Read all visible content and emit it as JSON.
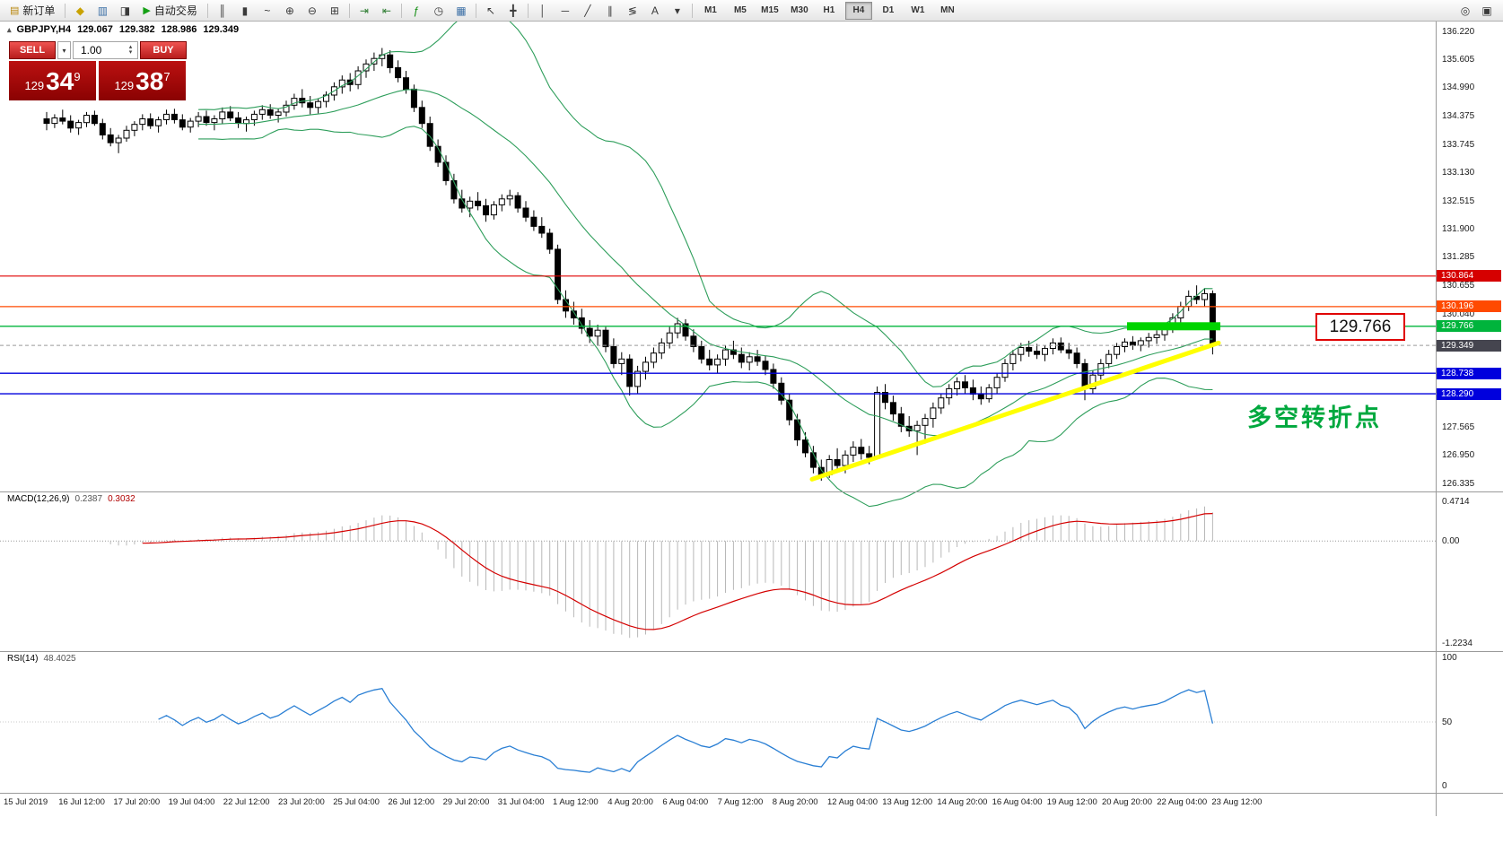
{
  "toolbar": {
    "items": [
      {
        "type": "button",
        "name": "new-order-button",
        "icon": "new-order-icon",
        "glyph": "▤",
        "color": "#b8860b",
        "label": "新订单"
      },
      {
        "type": "sep"
      },
      {
        "type": "icon",
        "name": "profiles-icon",
        "glyph": "◆",
        "color": "#c9a200"
      },
      {
        "type": "icon",
        "name": "charts-icon",
        "glyph": "▥",
        "color": "#3a6ea5"
      },
      {
        "type": "icon",
        "name": "terminal-icon",
        "glyph": "◨",
        "color": "#3a3a3a"
      },
      {
        "type": "button",
        "name": "autotrade-button",
        "icon": "autotrade-play-icon",
        "glyph": "▶",
        "color": "#15a015",
        "label": "自动交易"
      },
      {
        "type": "sep"
      },
      {
        "type": "icon",
        "name": "bar-chart-icon",
        "glyph": "║",
        "color": "#3a3a3a"
      },
      {
        "type": "icon",
        "name": "candlestick-chart-icon",
        "glyph": "▮",
        "color": "#3a3a3a"
      },
      {
        "type": "icon",
        "name": "line-chart-icon",
        "glyph": "~",
        "color": "#3a3a3a"
      },
      {
        "type": "icon",
        "name": "zoom-in-icon",
        "glyph": "⊕",
        "color": "#3a3a3a"
      },
      {
        "type": "icon",
        "name": "zoom-out-icon",
        "glyph": "⊖",
        "color": "#3a3a3a"
      },
      {
        "type": "icon",
        "name": "tile-windows-icon",
        "glyph": "⊞",
        "color": "#3a3a3a"
      },
      {
        "type": "sep"
      },
      {
        "type": "icon",
        "name": "auto-scroll-icon",
        "glyph": "⇥",
        "color": "#2e7d32"
      },
      {
        "type": "icon",
        "name": "chart-shift-icon",
        "glyph": "⇤",
        "color": "#2e7d32"
      },
      {
        "type": "sep"
      },
      {
        "type": "icon",
        "name": "indicators-icon",
        "glyph": "ƒ",
        "color": "#0a8a0a"
      },
      {
        "type": "icon",
        "name": "periods-icon",
        "glyph": "◷",
        "color": "#3a3a3a"
      },
      {
        "type": "icon",
        "name": "templates-icon",
        "glyph": "▦",
        "color": "#3a6ea5"
      },
      {
        "type": "sep"
      },
      {
        "type": "icon",
        "name": "cursor-icon",
        "glyph": "↖",
        "color": "#3a3a3a"
      },
      {
        "type": "icon",
        "name": "crosshair-icon",
        "glyph": "╋",
        "color": "#3a3a3a"
      },
      {
        "type": "sep"
      },
      {
        "type": "icon",
        "name": "vertical-line-icon",
        "glyph": "│",
        "color": "#3a3a3a"
      },
      {
        "type": "icon",
        "name": "horizontal-line-icon",
        "glyph": "─",
        "color": "#3a3a3a"
      },
      {
        "type": "icon",
        "name": "trendline-icon",
        "glyph": "╱",
        "color": "#3a3a3a"
      },
      {
        "type": "icon",
        "name": "channel-icon",
        "glyph": "∥",
        "color": "#3a3a3a"
      },
      {
        "type": "icon",
        "name": "fibonacci-icon",
        "glyph": "≶",
        "color": "#3a3a3a"
      },
      {
        "type": "icon",
        "name": "text-label-icon",
        "glyph": "A",
        "color": "#3a3a3a"
      },
      {
        "type": "icon",
        "name": "arrows-icon",
        "glyph": "▾",
        "color": "#3a3a3a"
      },
      {
        "type": "sep"
      },
      {
        "type": "tf",
        "label": "M1"
      },
      {
        "type": "tf",
        "label": "M5"
      },
      {
        "type": "tf",
        "label": "M15"
      },
      {
        "type": "tf",
        "label": "M30"
      },
      {
        "type": "tf",
        "label": "H1"
      },
      {
        "type": "tf",
        "label": "H4",
        "active": true
      },
      {
        "type": "tf",
        "label": "D1"
      },
      {
        "type": "tf",
        "label": "W1"
      },
      {
        "type": "tf",
        "label": "MN"
      }
    ],
    "right_icons": [
      {
        "name": "search-icon",
        "glyph": "◎",
        "color": "#3a3a3a"
      },
      {
        "name": "window-list-icon",
        "glyph": "▣",
        "color": "#3a3a3a"
      }
    ]
  },
  "chart_info": {
    "symbol_period": "GBPJPY,H4",
    "open": "129.067",
    "high": "129.382",
    "low": "128.986",
    "close": "129.349"
  },
  "trade_panel": {
    "sell_label": "SELL",
    "buy_label": "BUY",
    "volume": "1.00",
    "sell_price": {
      "big": "129",
      "pips": "34",
      "frac": "9"
    },
    "buy_price": {
      "big": "129",
      "pips": "38",
      "frac": "7"
    }
  },
  "annotations": {
    "turning_point": "多空转折点",
    "price_label": "129.766"
  },
  "price_axis": {
    "ticks": [
      "136.220",
      "135.605",
      "134.990",
      "134.375",
      "133.745",
      "133.130",
      "132.515",
      "131.900",
      "131.285",
      "130.655",
      "130.040",
      "127.565",
      "126.950",
      "126.335"
    ],
    "badges": [
      {
        "text": "130.864",
        "price": 130.864,
        "color": "#d60000"
      },
      {
        "text": "130.196",
        "price": 130.196,
        "color": "#ff4a00"
      },
      {
        "text": "129.766",
        "price": 129.766,
        "color": "#00b43c"
      },
      {
        "text": "129.349",
        "price": 129.349,
        "color": "#45454f"
      },
      {
        "text": "128.738",
        "price": 128.738,
        "color": "#0000dd"
      },
      {
        "text": "128.290",
        "price": 128.29,
        "color": "#0000dd"
      }
    ]
  },
  "macd_panel": {
    "label": "MACD(12,26,9)",
    "value_main": "0.2387",
    "value_signal": "0.3032",
    "scale": [
      "0.4714",
      "0.00",
      "-1.2234"
    ]
  },
  "rsi_panel": {
    "label": "RSI(14)",
    "value": "48.4025",
    "scale": [
      "100",
      "50",
      "0"
    ]
  },
  "time_axis": {
    "labels": [
      "15 Jul 2019",
      "16 Jul 12:00",
      "17 Jul 20:00",
      "19 Jul 04:00",
      "22 Jul 12:00",
      "23 Jul 20:00",
      "25 Jul 04:00",
      "26 Jul 12:00",
      "29 Jul 20:00",
      "31 Jul 04:00",
      "1 Aug 12:00",
      "4 Aug 20:00",
      "6 Aug 04:00",
      "7 Aug 12:00",
      "8 Aug 20:00",
      "12 Aug 04:00",
      "13 Aug 12:00",
      "14 Aug 20:00",
      "16 Aug 04:00",
      "19 Aug 12:00",
      "20 Aug 20:00",
      "22 Aug 04:00",
      "23 Aug 12:00"
    ]
  },
  "chart_data": {
    "type": "candlestick",
    "symbol": "GBPJPY",
    "period": "H4",
    "indicators": {
      "bollinger": {
        "period": 20,
        "deviation": 2,
        "color": "#2e9e5b"
      },
      "macd": {
        "fast": 12,
        "slow": 26,
        "signal": 9,
        "hist_color": "#b8b8b8",
        "signal_color": "#d40000"
      },
      "rsi": {
        "period": 14,
        "color": "#2a7fd4"
      }
    },
    "hlines": [
      {
        "price": 130.864,
        "color": "#e00000",
        "width": 1.2
      },
      {
        "price": 130.196,
        "color": "#ff4a00",
        "width": 1.2
      },
      {
        "price": 129.766,
        "color": "#00b43c",
        "width": 1.4
      },
      {
        "price": 129.349,
        "color": "#9a9a9a",
        "width": 1,
        "style": "dash"
      },
      {
        "price": 128.738,
        "color": "#0000dd",
        "width": 1.4
      },
      {
        "price": 128.29,
        "color": "#0000dd",
        "width": 1.4
      }
    ],
    "trendline": {
      "color": "#ffff00",
      "from_price": 126.42,
      "to_price": 129.4
    },
    "highlight_bar": {
      "price": 129.766,
      "color": "#00d400"
    },
    "candles": [
      [
        134.3,
        134.45,
        134.05,
        134.2
      ],
      [
        134.2,
        134.4,
        134.1,
        134.32
      ],
      [
        134.32,
        134.5,
        134.18,
        134.25
      ],
      [
        134.25,
        134.38,
        134.0,
        134.1
      ],
      [
        134.1,
        134.28,
        133.95,
        134.22
      ],
      [
        134.22,
        134.45,
        134.12,
        134.38
      ],
      [
        134.38,
        134.48,
        134.15,
        134.2
      ],
      [
        134.2,
        134.3,
        133.85,
        133.95
      ],
      [
        133.95,
        134.1,
        133.7,
        133.78
      ],
      [
        133.78,
        133.95,
        133.55,
        133.88
      ],
      [
        133.88,
        134.15,
        133.8,
        134.05
      ],
      [
        134.05,
        134.25,
        133.92,
        134.18
      ],
      [
        134.18,
        134.4,
        134.05,
        134.3
      ],
      [
        134.3,
        134.42,
        134.08,
        134.15
      ],
      [
        134.15,
        134.35,
        134.0,
        134.28
      ],
      [
        134.28,
        134.5,
        134.18,
        134.4
      ],
      [
        134.4,
        134.52,
        134.2,
        134.28
      ],
      [
        134.28,
        134.4,
        134.05,
        134.12
      ],
      [
        134.12,
        134.32,
        134.0,
        134.25
      ],
      [
        134.25,
        134.45,
        134.12,
        134.35
      ],
      [
        134.35,
        134.48,
        134.15,
        134.22
      ],
      [
        134.22,
        134.38,
        134.05,
        134.3
      ],
      [
        134.3,
        134.55,
        134.2,
        134.45
      ],
      [
        134.45,
        134.58,
        134.25,
        134.32
      ],
      [
        134.32,
        134.45,
        134.1,
        134.2
      ],
      [
        134.2,
        134.35,
        134.02,
        134.28
      ],
      [
        134.28,
        134.48,
        134.15,
        134.4
      ],
      [
        134.4,
        134.6,
        134.28,
        134.5
      ],
      [
        134.5,
        134.62,
        134.3,
        134.38
      ],
      [
        134.38,
        134.52,
        134.22,
        134.45
      ],
      [
        134.45,
        134.7,
        134.35,
        134.6
      ],
      [
        134.6,
        134.85,
        134.5,
        134.75
      ],
      [
        134.75,
        134.95,
        134.55,
        134.65
      ],
      [
        134.65,
        134.8,
        134.4,
        134.55
      ],
      [
        134.55,
        134.75,
        134.42,
        134.68
      ],
      [
        134.68,
        134.9,
        134.55,
        134.82
      ],
      [
        134.82,
        135.1,
        134.7,
        135.0
      ],
      [
        135.0,
        135.25,
        134.85,
        135.15
      ],
      [
        135.15,
        135.3,
        134.9,
        135.05
      ],
      [
        135.05,
        135.45,
        134.95,
        135.35
      ],
      [
        135.35,
        135.6,
        135.2,
        135.5
      ],
      [
        135.5,
        135.75,
        135.35,
        135.62
      ],
      [
        135.62,
        135.85,
        135.45,
        135.7
      ],
      [
        135.7,
        135.8,
        135.3,
        135.42
      ],
      [
        135.42,
        135.58,
        135.1,
        135.2
      ],
      [
        135.2,
        135.35,
        134.85,
        134.95
      ],
      [
        134.95,
        135.05,
        134.45,
        134.55
      ],
      [
        134.55,
        134.7,
        134.1,
        134.2
      ],
      [
        134.2,
        134.35,
        133.6,
        133.7
      ],
      [
        133.7,
        133.85,
        133.25,
        133.35
      ],
      [
        133.35,
        133.5,
        132.85,
        132.95
      ],
      [
        132.95,
        133.1,
        132.45,
        132.55
      ],
      [
        132.55,
        132.75,
        132.25,
        132.35
      ],
      [
        132.35,
        132.6,
        132.15,
        132.5
      ],
      [
        132.5,
        132.7,
        132.3,
        132.4
      ],
      [
        132.4,
        132.55,
        132.05,
        132.2
      ],
      [
        132.2,
        132.5,
        132.1,
        132.42
      ],
      [
        132.42,
        132.65,
        132.28,
        132.55
      ],
      [
        132.55,
        132.75,
        132.4,
        132.62
      ],
      [
        132.62,
        132.7,
        132.25,
        132.35
      ],
      [
        132.35,
        132.5,
        132.05,
        132.15
      ],
      [
        132.15,
        132.3,
        131.85,
        131.95
      ],
      [
        131.95,
        132.15,
        131.7,
        131.8
      ],
      [
        131.8,
        131.9,
        131.35,
        131.45
      ],
      [
        131.45,
        131.55,
        130.25,
        130.35
      ],
      [
        130.35,
        130.55,
        129.95,
        130.1
      ],
      [
        130.1,
        130.3,
        129.8,
        129.95
      ],
      [
        129.95,
        130.15,
        129.6,
        129.72
      ],
      [
        129.72,
        129.9,
        129.4,
        129.55
      ],
      [
        129.55,
        129.8,
        129.35,
        129.68
      ],
      [
        129.68,
        129.75,
        129.2,
        129.32
      ],
      [
        129.32,
        129.5,
        128.85,
        128.95
      ],
      [
        128.95,
        129.2,
        128.7,
        129.05
      ],
      [
        129.05,
        129.15,
        128.25,
        128.45
      ],
      [
        128.45,
        128.9,
        128.3,
        128.78
      ],
      [
        128.78,
        129.1,
        128.6,
        128.98
      ],
      [
        128.98,
        129.3,
        128.85,
        129.18
      ],
      [
        129.18,
        129.5,
        129.05,
        129.4
      ],
      [
        129.4,
        129.75,
        129.28,
        129.62
      ],
      [
        129.62,
        129.95,
        129.5,
        129.82
      ],
      [
        129.82,
        129.92,
        129.45,
        129.55
      ],
      [
        129.55,
        129.7,
        129.2,
        129.32
      ],
      [
        129.32,
        129.45,
        128.95,
        129.05
      ],
      [
        129.05,
        129.25,
        128.8,
        128.92
      ],
      [
        128.92,
        129.15,
        128.75,
        129.05
      ],
      [
        129.05,
        129.35,
        128.9,
        129.25
      ],
      [
        129.25,
        129.45,
        129.05,
        129.15
      ],
      [
        129.15,
        129.3,
        128.85,
        128.98
      ],
      [
        128.98,
        129.2,
        128.8,
        129.1
      ],
      [
        129.1,
        129.25,
        128.9,
        129.0
      ],
      [
        129.0,
        129.12,
        128.7,
        128.82
      ],
      [
        128.82,
        128.95,
        128.4,
        128.52
      ],
      [
        128.52,
        128.65,
        128.05,
        128.15
      ],
      [
        128.15,
        128.3,
        127.6,
        127.72
      ],
      [
        127.72,
        127.85,
        127.15,
        127.28
      ],
      [
        127.28,
        127.45,
        126.9,
        127.0
      ],
      [
        127.0,
        127.15,
        126.55,
        126.68
      ],
      [
        126.68,
        126.85,
        126.39,
        126.52
      ],
      [
        126.52,
        126.95,
        126.45,
        126.85
      ],
      [
        126.85,
        127.1,
        126.6,
        126.72
      ],
      [
        126.72,
        127.05,
        126.55,
        126.95
      ],
      [
        126.95,
        127.25,
        126.8,
        127.12
      ],
      [
        127.12,
        127.3,
        126.85,
        126.98
      ],
      [
        126.98,
        127.15,
        126.75,
        126.9
      ],
      [
        126.9,
        128.45,
        126.85,
        128.32
      ],
      [
        128.32,
        128.5,
        127.95,
        128.1
      ],
      [
        128.1,
        128.25,
        127.7,
        127.85
      ],
      [
        127.85,
        128.0,
        127.45,
        127.58
      ],
      [
        127.58,
        127.8,
        127.35,
        127.48
      ],
      [
        127.48,
        127.7,
        126.95,
        127.6
      ],
      [
        127.6,
        127.85,
        127.2,
        127.75
      ],
      [
        127.75,
        128.1,
        127.55,
        127.98
      ],
      [
        127.98,
        128.3,
        127.85,
        128.2
      ],
      [
        128.2,
        128.5,
        128.05,
        128.4
      ],
      [
        128.4,
        128.65,
        128.25,
        128.55
      ],
      [
        128.55,
        128.7,
        128.3,
        128.42
      ],
      [
        128.42,
        128.6,
        128.15,
        128.28
      ],
      [
        128.28,
        128.45,
        128.05,
        128.18
      ],
      [
        128.18,
        128.5,
        128.1,
        128.42
      ],
      [
        128.42,
        128.75,
        128.3,
        128.65
      ],
      [
        128.65,
        129.05,
        128.55,
        128.95
      ],
      [
        128.95,
        129.25,
        128.8,
        129.15
      ],
      [
        129.15,
        129.4,
        129.0,
        129.3
      ],
      [
        129.3,
        129.45,
        129.1,
        129.22
      ],
      [
        129.22,
        129.38,
        129.05,
        129.15
      ],
      [
        129.15,
        129.35,
        129.0,
        129.28
      ],
      [
        129.28,
        129.5,
        129.15,
        129.4
      ],
      [
        129.4,
        129.52,
        129.18,
        129.25
      ],
      [
        129.25,
        129.4,
        129.05,
        129.18
      ],
      [
        129.18,
        129.3,
        128.85,
        128.95
      ],
      [
        128.95,
        129.05,
        128.15,
        128.4
      ],
      [
        128.4,
        128.8,
        128.3,
        128.7
      ],
      [
        128.7,
        129.05,
        128.6,
        128.95
      ],
      [
        128.95,
        129.25,
        128.85,
        129.15
      ],
      [
        129.15,
        129.4,
        129.05,
        129.32
      ],
      [
        129.32,
        129.5,
        129.2,
        129.42
      ],
      [
        129.42,
        129.55,
        129.25,
        129.35
      ],
      [
        129.35,
        129.52,
        129.22,
        129.45
      ],
      [
        129.45,
        129.62,
        129.3,
        129.52
      ],
      [
        129.52,
        129.68,
        129.38,
        129.58
      ],
      [
        129.58,
        129.8,
        129.45,
        129.72
      ],
      [
        129.72,
        130.05,
        129.62,
        129.95
      ],
      [
        129.95,
        130.3,
        129.85,
        130.2
      ],
      [
        130.2,
        130.55,
        130.1,
        130.42
      ],
      [
        130.42,
        130.66,
        130.25,
        130.35
      ],
      [
        130.35,
        130.6,
        130.2,
        130.48
      ],
      [
        130.48,
        130.55,
        129.15,
        129.35
      ]
    ]
  }
}
